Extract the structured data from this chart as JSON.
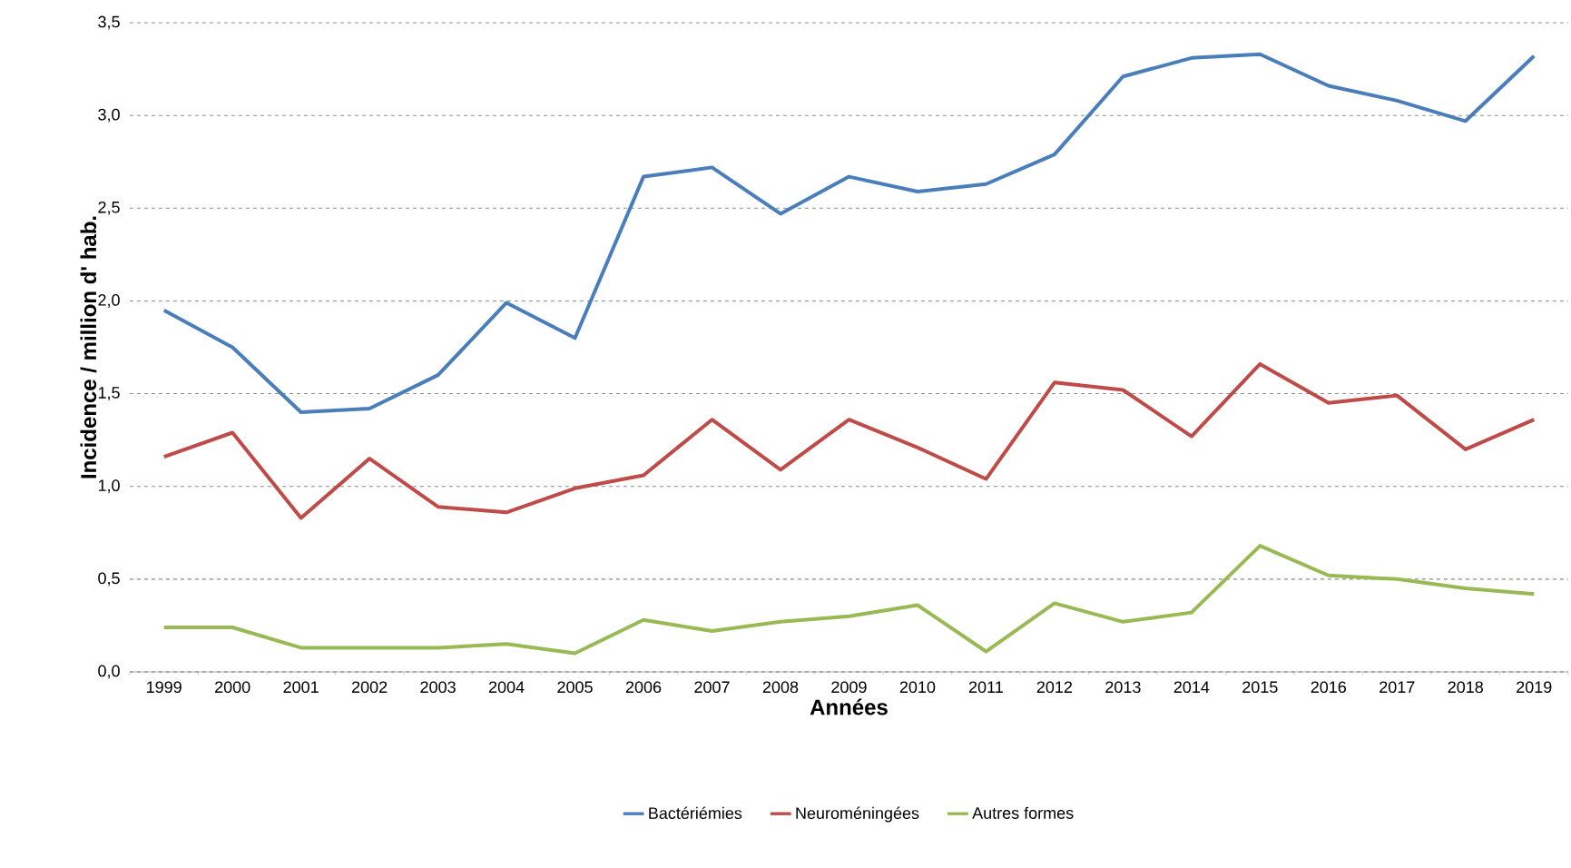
{
  "chart_data": {
    "type": "line",
    "xlabel": "Années",
    "ylabel": "Incidence / million d' hab.",
    "categories": [
      "1999",
      "2000",
      "2001",
      "2002",
      "2003",
      "2004",
      "2005",
      "2006",
      "2007",
      "2008",
      "2009",
      "2010",
      "2011",
      "2012",
      "2013",
      "2014",
      "2015",
      "2016",
      "2017",
      "2018",
      "2019"
    ],
    "series": [
      {
        "name": "Bactériémies",
        "color": "#4a7ebb",
        "values": [
          1.95,
          1.75,
          1.4,
          1.42,
          1.6,
          1.99,
          1.8,
          2.67,
          2.72,
          2.47,
          2.67,
          2.59,
          2.63,
          2.79,
          3.21,
          3.31,
          3.33,
          3.16,
          3.08,
          2.97,
          3.32
        ]
      },
      {
        "name": "Neuroméningées",
        "color": "#be4b48",
        "values": [
          1.16,
          1.29,
          0.83,
          1.15,
          0.89,
          0.86,
          0.99,
          1.06,
          1.36,
          1.09,
          1.36,
          1.21,
          1.04,
          1.56,
          1.52,
          1.27,
          1.66,
          1.45,
          1.49,
          1.2,
          1.36
        ]
      },
      {
        "name": "Autres formes",
        "color": "#98b954",
        "values": [
          0.24,
          0.24,
          0.13,
          0.13,
          0.13,
          0.15,
          0.1,
          0.28,
          0.22,
          0.27,
          0.3,
          0.36,
          0.11,
          0.37,
          0.27,
          0.32,
          0.68,
          0.52,
          0.5,
          0.45,
          0.42
        ]
      }
    ],
    "ylim": [
      0,
      3.5
    ],
    "yticks": [
      {
        "value": 0,
        "label": "0,0"
      },
      {
        "value": 0.5,
        "label": "0,5"
      },
      {
        "value": 1,
        "label": "1,0"
      },
      {
        "value": 1.5,
        "label": "1,5"
      },
      {
        "value": 2,
        "label": "2,0"
      },
      {
        "value": 2.5,
        "label": "2,5"
      },
      {
        "value": 3,
        "label": "3,0"
      },
      {
        "value": 3.5,
        "label": "3,5"
      }
    ],
    "grid": "y",
    "legend": "bottom",
    "marker": "none",
    "line_style": "solid"
  }
}
